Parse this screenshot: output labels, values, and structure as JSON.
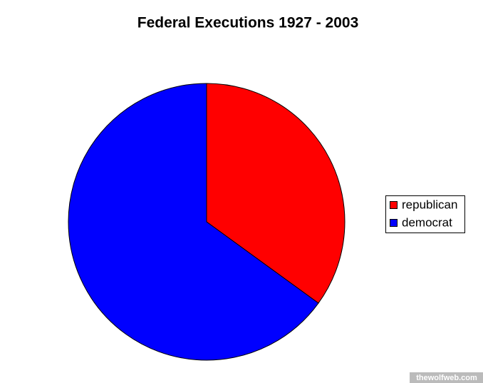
{
  "chart_data": {
    "type": "pie",
    "title": "Federal Executions  1927 - 2003",
    "categories": [
      "republican",
      "democrat"
    ],
    "values": [
      35,
      65
    ],
    "colors": [
      "#ff0000",
      "#0000ff"
    ],
    "start_angle": 0,
    "direction": "clockwise",
    "legend": "right"
  },
  "watermark": "thewolfweb.com"
}
